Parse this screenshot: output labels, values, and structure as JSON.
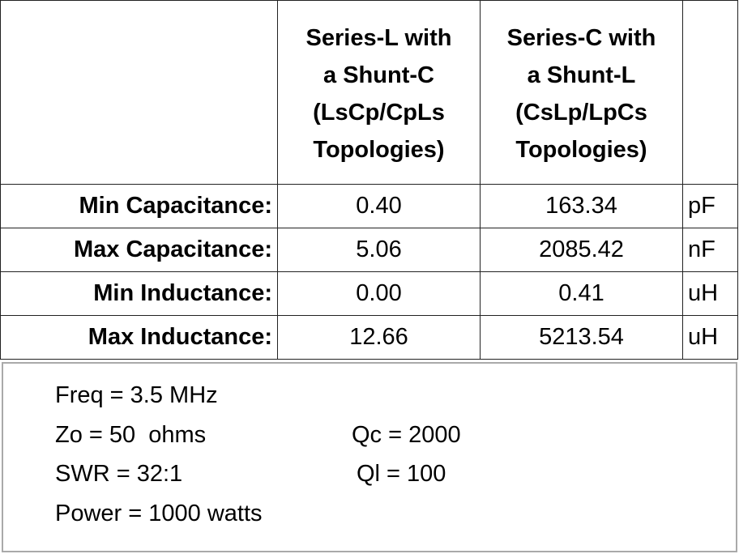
{
  "table": {
    "columns": [
      {
        "lines": [
          "Series-L with",
          "a Shunt-C",
          "(LsCp/CpLs",
          "Topologies)"
        ]
      },
      {
        "lines": [
          "Series-C with",
          "a Shunt-L",
          "(CsLp/LpCs",
          "Topologies)"
        ]
      }
    ],
    "rows": [
      {
        "label": "Min Capacitance:",
        "values": [
          "0.40",
          "163.34"
        ],
        "unit": "pF"
      },
      {
        "label": "Max Capacitance:",
        "values": [
          "5.06",
          "2085.42"
        ],
        "unit": "nF"
      },
      {
        "label": "Min Inductance:",
        "values": [
          "0.00",
          "0.41"
        ],
        "unit": "uH"
      },
      {
        "label": "Max Inductance:",
        "values": [
          "12.66",
          "5213.54"
        ],
        "unit": "uH"
      }
    ]
  },
  "notes": [
    [
      "Freq = 3.5 MHz"
    ],
    [
      "Zo = 50  ohms",
      "Qc = 2000"
    ],
    [
      "SWR = 32:1",
      "Ql = 100"
    ],
    [
      "Power = 1000 watts"
    ]
  ]
}
